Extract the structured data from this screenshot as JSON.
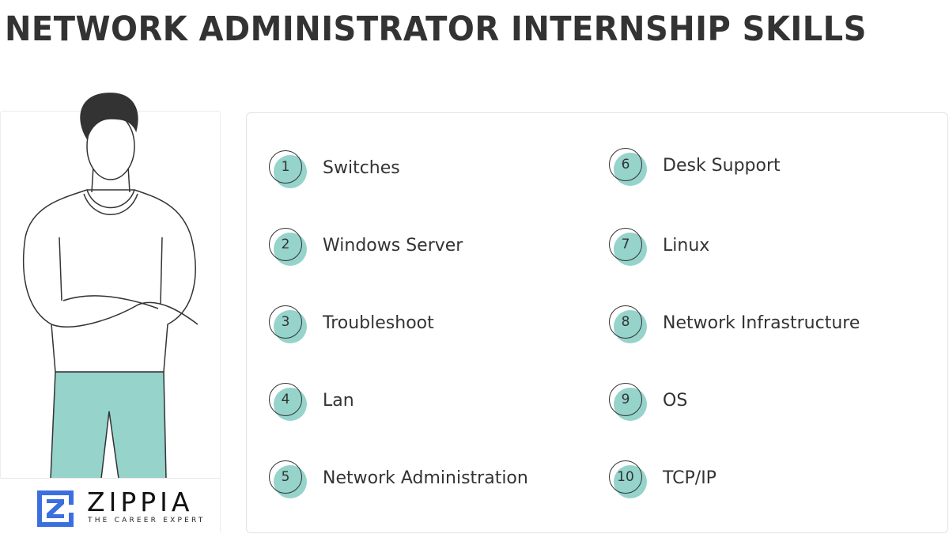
{
  "title": "NETWORK ADMINISTRATOR INTERNSHIP SKILLS",
  "brand": {
    "name": "ZIPPIA",
    "tagline": "THE CAREER EXPERT"
  },
  "colors": {
    "accent": "#95d3cb",
    "brand_blue": "#3b6fe0",
    "text": "#333333"
  },
  "skills": [
    {
      "number": "1",
      "label": "Switches"
    },
    {
      "number": "2",
      "label": "Windows Server"
    },
    {
      "number": "3",
      "label": "Troubleshoot"
    },
    {
      "number": "4",
      "label": "Lan"
    },
    {
      "number": "5",
      "label": "Network Administration"
    },
    {
      "number": "6",
      "label": "Desk Support"
    },
    {
      "number": "7",
      "label": "Linux"
    },
    {
      "number": "8",
      "label": "Network Infrastructure"
    },
    {
      "number": "9",
      "label": "OS"
    },
    {
      "number": "10",
      "label": "TCP/IP"
    }
  ]
}
